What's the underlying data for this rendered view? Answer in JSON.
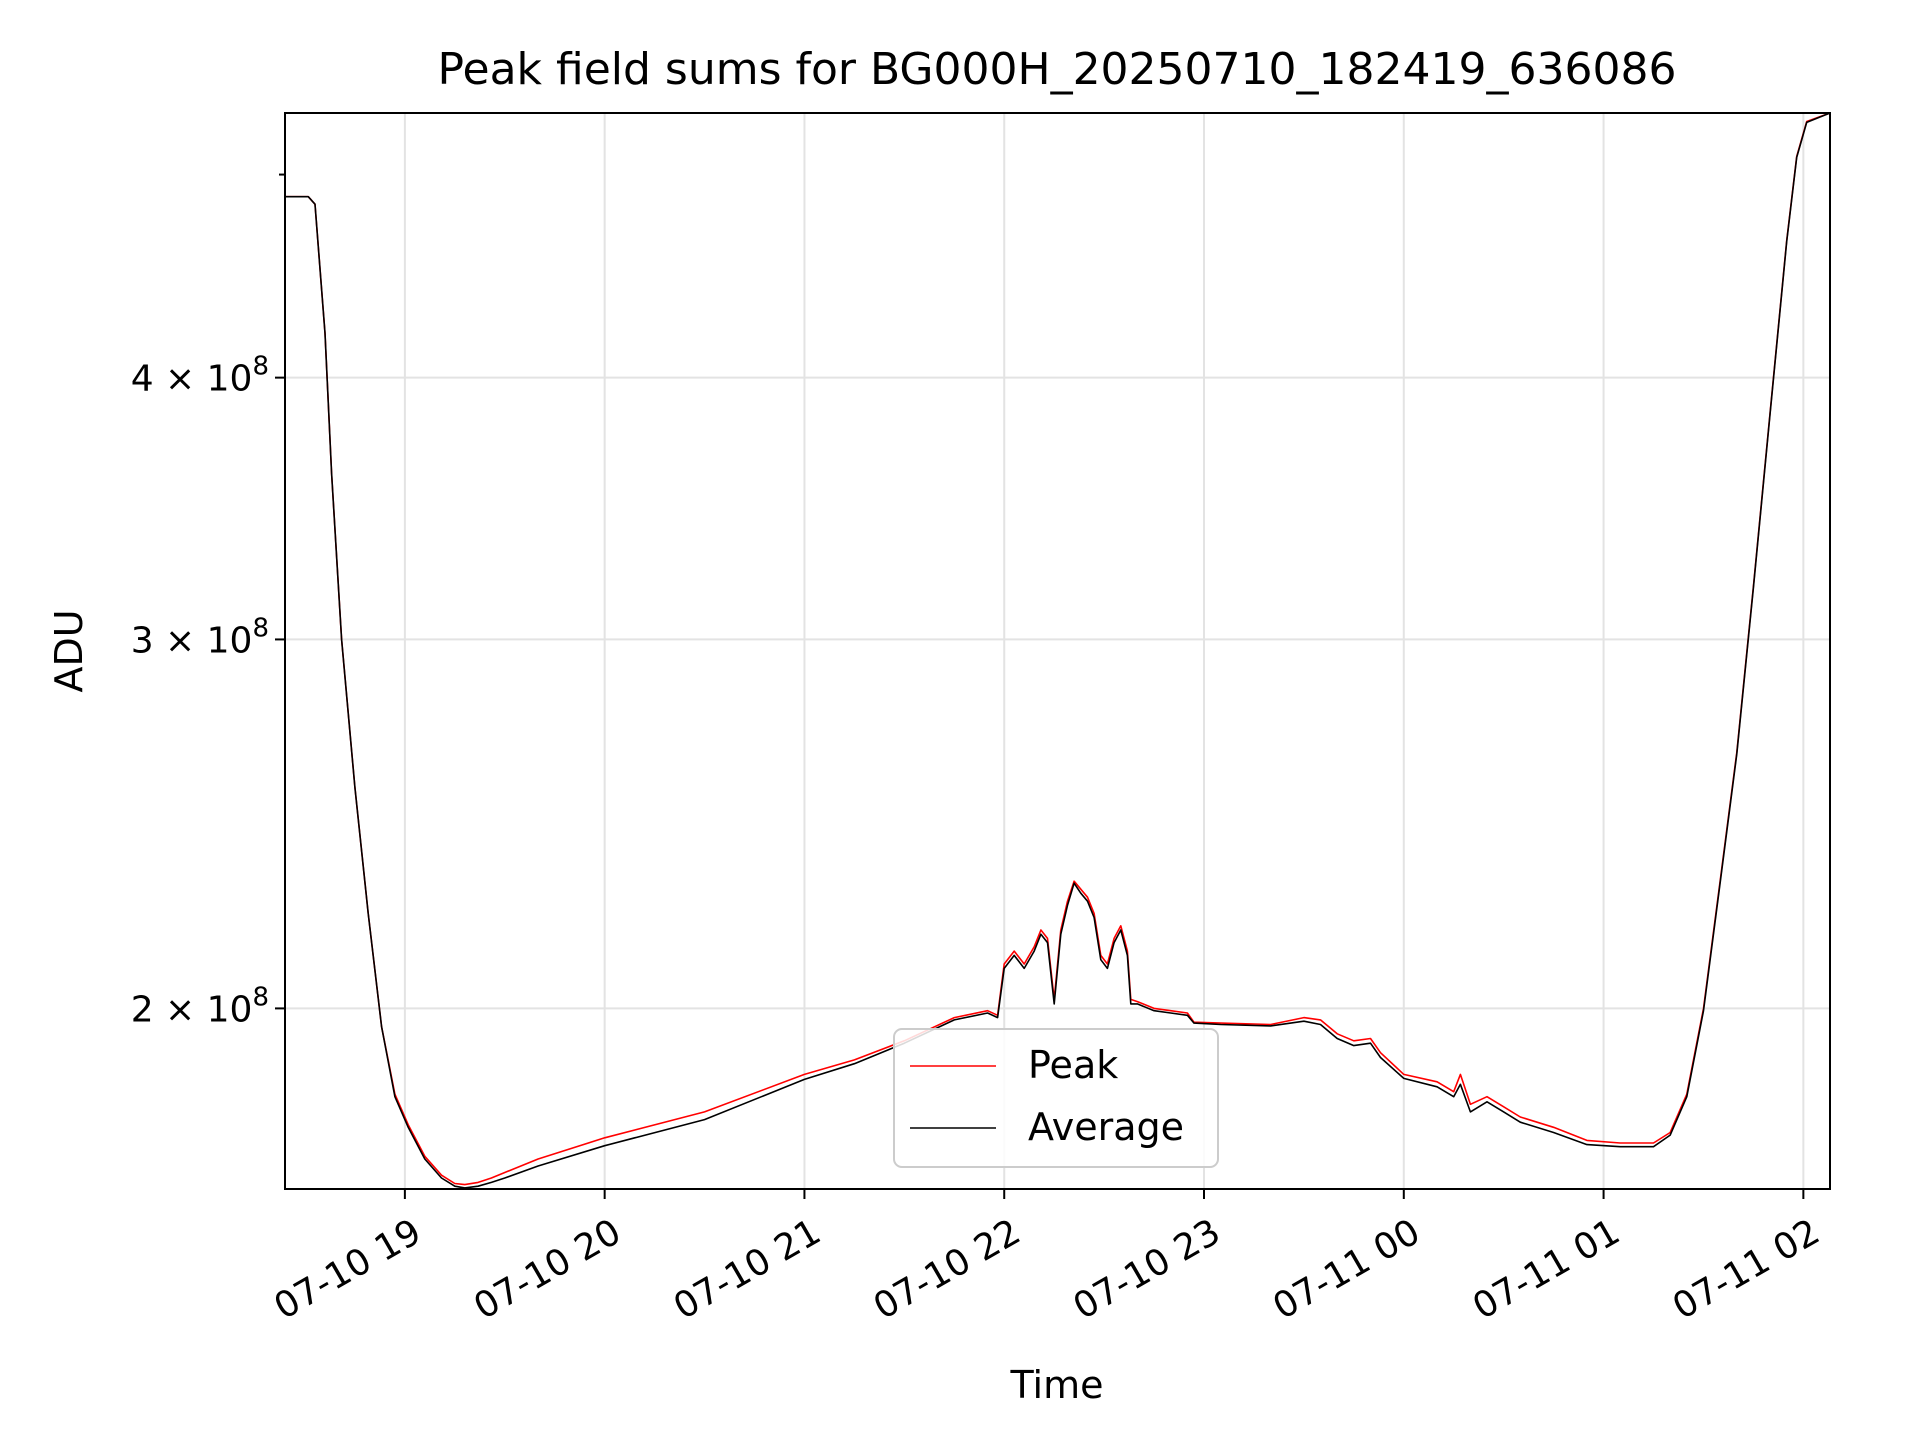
{
  "chart_data": {
    "type": "line",
    "title": "Peak field sums for BG000H_20250710_182419_636086",
    "xlabel": "Time",
    "ylabel": "ADU",
    "x_axis_type": "datetime",
    "xlim": [
      "2025-07-10 18:24",
      "2025-07-11 02:08"
    ],
    "y_scale": "log",
    "ylim": [
      164000000,
      535000000
    ],
    "grid": true,
    "legend_position": "lower center",
    "x_ticks": [
      {
        "value": "2025-07-10 19:00",
        "label": "07-10 19"
      },
      {
        "value": "2025-07-10 20:00",
        "label": "07-10 20"
      },
      {
        "value": "2025-07-10 21:00",
        "label": "07-10 21"
      },
      {
        "value": "2025-07-10 22:00",
        "label": "07-10 22"
      },
      {
        "value": "2025-07-10 23:00",
        "label": "07-10 23"
      },
      {
        "value": "2025-07-11 00:00",
        "label": "07-11 00"
      },
      {
        "value": "2025-07-11 01:00",
        "label": "07-11 01"
      },
      {
        "value": "2025-07-11 02:00",
        "label": "07-11 02"
      }
    ],
    "y_ticks": [
      {
        "value": 200000000,
        "label_base": "2 × 10",
        "label_exp": "8"
      },
      {
        "value": 300000000,
        "label_base": "3 × 10",
        "label_exp": "8"
      },
      {
        "value": 400000000,
        "label_base": "4 × 10",
        "label_exp": "8"
      },
      {
        "value": 500000000,
        "label_base": "",
        "label_exp": ""
      }
    ],
    "series": [
      {
        "name": "Peak",
        "color": "#ff0000",
        "points": [
          [
            "2025-07-10 18:24",
            488000000
          ],
          [
            "2025-07-10 18:31",
            488000000
          ],
          [
            "2025-07-10 18:33",
            484000000
          ],
          [
            "2025-07-10 18:36",
            420000000
          ],
          [
            "2025-07-10 18:38",
            360000000
          ],
          [
            "2025-07-10 18:41",
            300000000
          ],
          [
            "2025-07-10 18:45",
            255000000
          ],
          [
            "2025-07-10 18:49",
            222000000
          ],
          [
            "2025-07-10 18:53",
            196000000
          ],
          [
            "2025-07-10 18:57",
            182000000
          ],
          [
            "2025-07-10 19:01",
            176000000
          ],
          [
            "2025-07-10 19:06",
            170000000
          ],
          [
            "2025-07-10 19:11",
            166500000
          ],
          [
            "2025-07-10 19:15",
            165000000
          ],
          [
            "2025-07-10 19:18",
            164800000
          ],
          [
            "2025-07-10 19:22",
            165200000
          ],
          [
            "2025-07-10 19:26",
            166000000
          ],
          [
            "2025-07-10 19:30",
            167000000
          ],
          [
            "2025-07-10 19:40",
            169500000
          ],
          [
            "2025-07-10 20:00",
            173500000
          ],
          [
            "2025-07-10 20:30",
            178500000
          ],
          [
            "2025-07-10 21:00",
            186000000
          ],
          [
            "2025-07-10 21:15",
            189000000
          ],
          [
            "2025-07-10 21:30",
            193000000
          ],
          [
            "2025-07-10 21:45",
            198000000
          ],
          [
            "2025-07-10 21:55",
            199500000
          ],
          [
            "2025-07-10 21:58",
            198500000
          ],
          [
            "2025-07-10 22:00",
            210000000
          ],
          [
            "2025-07-10 22:03",
            213000000
          ],
          [
            "2025-07-10 22:06",
            210000000
          ],
          [
            "2025-07-10 22:09",
            214000000
          ],
          [
            "2025-07-10 22:11",
            218000000
          ],
          [
            "2025-07-10 22:13",
            216000000
          ],
          [
            "2025-07-10 22:15",
            202000000
          ],
          [
            "2025-07-10 22:17",
            218000000
          ],
          [
            "2025-07-10 22:19",
            225000000
          ],
          [
            "2025-07-10 22:21",
            230000000
          ],
          [
            "2025-07-10 22:23",
            228000000
          ],
          [
            "2025-07-10 22:25",
            226000000
          ],
          [
            "2025-07-10 22:27",
            222000000
          ],
          [
            "2025-07-10 22:29",
            212000000
          ],
          [
            "2025-07-10 22:31",
            210000000
          ],
          [
            "2025-07-10 22:33",
            216000000
          ],
          [
            "2025-07-10 22:35",
            219000000
          ],
          [
            "2025-07-10 22:37",
            213000000
          ],
          [
            "2025-07-10 22:38",
            202000000
          ],
          [
            "2025-07-10 22:40",
            201500000
          ],
          [
            "2025-07-10 22:45",
            200000000
          ],
          [
            "2025-07-10 22:50",
            199500000
          ],
          [
            "2025-07-10 22:55",
            199000000
          ],
          [
            "2025-07-10 22:57",
            197000000
          ],
          [
            "2025-07-10 23:05",
            196800000
          ],
          [
            "2025-07-10 23:20",
            196500000
          ],
          [
            "2025-07-10 23:30",
            198000000
          ],
          [
            "2025-07-10 23:35",
            197500000
          ],
          [
            "2025-07-10 23:40",
            194500000
          ],
          [
            "2025-07-10 23:45",
            193000000
          ],
          [
            "2025-07-10 23:50",
            193500000
          ],
          [
            "2025-07-10 23:53",
            190500000
          ],
          [
            "2025-07-11 00:00",
            186000000
          ],
          [
            "2025-07-11 00:10",
            184500000
          ],
          [
            "2025-07-11 00:15",
            182500000
          ],
          [
            "2025-07-11 00:17",
            186000000
          ],
          [
            "2025-07-11 00:20",
            180000000
          ],
          [
            "2025-07-11 00:25",
            181500000
          ],
          [
            "2025-07-11 00:30",
            179500000
          ],
          [
            "2025-07-11 00:35",
            177500000
          ],
          [
            "2025-07-11 00:45",
            175500000
          ],
          [
            "2025-07-11 00:55",
            173000000
          ],
          [
            "2025-07-11 01:05",
            172500000
          ],
          [
            "2025-07-11 01:15",
            172500000
          ],
          [
            "2025-07-11 01:20",
            174500000
          ],
          [
            "2025-07-11 01:25",
            182000000
          ],
          [
            "2025-07-11 01:30",
            200000000
          ],
          [
            "2025-07-11 01:35",
            230000000
          ],
          [
            "2025-07-11 01:40",
            265000000
          ],
          [
            "2025-07-11 01:45",
            318000000
          ],
          [
            "2025-07-11 01:50",
            385000000
          ],
          [
            "2025-07-11 01:55",
            465000000
          ],
          [
            "2025-07-11 01:58",
            510000000
          ],
          [
            "2025-07-11 02:01",
            530000000
          ],
          [
            "2025-07-11 02:08",
            535000000
          ]
        ]
      },
      {
        "name": "Average",
        "color": "#000000",
        "points": [
          [
            "2025-07-10 18:24",
            488000000
          ],
          [
            "2025-07-10 18:31",
            488000000
          ],
          [
            "2025-07-10 18:33",
            484000000
          ],
          [
            "2025-07-10 18:36",
            420000000
          ],
          [
            "2025-07-10 18:38",
            360000000
          ],
          [
            "2025-07-10 18:41",
            300000000
          ],
          [
            "2025-07-10 18:45",
            255000000
          ],
          [
            "2025-07-10 18:49",
            222000000
          ],
          [
            "2025-07-10 18:53",
            196000000
          ],
          [
            "2025-07-10 18:57",
            181500000
          ],
          [
            "2025-07-10 19:01",
            175500000
          ],
          [
            "2025-07-10 19:06",
            169500000
          ],
          [
            "2025-07-10 19:11",
            166000000
          ],
          [
            "2025-07-10 19:15",
            164500000
          ],
          [
            "2025-07-10 19:18",
            164200000
          ],
          [
            "2025-07-10 19:22",
            164500000
          ],
          [
            "2025-07-10 19:26",
            165200000
          ],
          [
            "2025-07-10 19:30",
            166000000
          ],
          [
            "2025-07-10 19:40",
            168200000
          ],
          [
            "2025-07-10 20:00",
            172000000
          ],
          [
            "2025-07-10 20:30",
            177000000
          ],
          [
            "2025-07-10 21:00",
            185000000
          ],
          [
            "2025-07-10 21:15",
            188200000
          ],
          [
            "2025-07-10 21:30",
            192500000
          ],
          [
            "2025-07-10 21:45",
            197500000
          ],
          [
            "2025-07-10 21:55",
            199000000
          ],
          [
            "2025-07-10 21:58",
            198000000
          ],
          [
            "2025-07-10 22:00",
            209000000
          ],
          [
            "2025-07-10 22:03",
            212000000
          ],
          [
            "2025-07-10 22:06",
            209000000
          ],
          [
            "2025-07-10 22:09",
            213000000
          ],
          [
            "2025-07-10 22:11",
            217000000
          ],
          [
            "2025-07-10 22:13",
            215000000
          ],
          [
            "2025-07-10 22:15",
            201000000
          ],
          [
            "2025-07-10 22:17",
            217000000
          ],
          [
            "2025-07-10 22:19",
            224000000
          ],
          [
            "2025-07-10 22:21",
            229500000
          ],
          [
            "2025-07-10 22:23",
            227000000
          ],
          [
            "2025-07-10 22:25",
            225000000
          ],
          [
            "2025-07-10 22:27",
            221000000
          ],
          [
            "2025-07-10 22:29",
            211000000
          ],
          [
            "2025-07-10 22:31",
            209000000
          ],
          [
            "2025-07-10 22:33",
            215000000
          ],
          [
            "2025-07-10 22:35",
            218000000
          ],
          [
            "2025-07-10 22:37",
            212000000
          ],
          [
            "2025-07-10 22:38",
            201000000
          ],
          [
            "2025-07-10 22:40",
            201000000
          ],
          [
            "2025-07-10 22:45",
            199500000
          ],
          [
            "2025-07-10 22:50",
            199000000
          ],
          [
            "2025-07-10 22:55",
            198500000
          ],
          [
            "2025-07-10 22:57",
            196800000
          ],
          [
            "2025-07-10 23:05",
            196500000
          ],
          [
            "2025-07-10 23:20",
            196200000
          ],
          [
            "2025-07-10 23:30",
            197200000
          ],
          [
            "2025-07-10 23:35",
            196500000
          ],
          [
            "2025-07-10 23:40",
            193500000
          ],
          [
            "2025-07-10 23:45",
            192000000
          ],
          [
            "2025-07-10 23:50",
            192500000
          ],
          [
            "2025-07-10 23:53",
            189500000
          ],
          [
            "2025-07-11 00:00",
            185200000
          ],
          [
            "2025-07-11 00:10",
            183500000
          ],
          [
            "2025-07-11 00:15",
            181500000
          ],
          [
            "2025-07-11 00:17",
            184000000
          ],
          [
            "2025-07-11 00:20",
            178500000
          ],
          [
            "2025-07-11 00:25",
            180500000
          ],
          [
            "2025-07-11 00:30",
            178500000
          ],
          [
            "2025-07-11 00:35",
            176500000
          ],
          [
            "2025-07-11 00:45",
            174500000
          ],
          [
            "2025-07-11 00:55",
            172200000
          ],
          [
            "2025-07-11 01:05",
            171800000
          ],
          [
            "2025-07-11 01:15",
            171800000
          ],
          [
            "2025-07-11 01:20",
            174000000
          ],
          [
            "2025-07-11 01:25",
            181500000
          ],
          [
            "2025-07-11 01:30",
            199500000
          ],
          [
            "2025-07-11 01:35",
            229500000
          ],
          [
            "2025-07-11 01:40",
            264500000
          ],
          [
            "2025-07-11 01:45",
            317500000
          ],
          [
            "2025-07-11 01:50",
            384500000
          ],
          [
            "2025-07-11 01:55",
            464500000
          ],
          [
            "2025-07-11 01:58",
            509500000
          ],
          [
            "2025-07-11 02:01",
            529500000
          ],
          [
            "2025-07-11 02:08",
            535000000
          ]
        ]
      }
    ]
  }
}
